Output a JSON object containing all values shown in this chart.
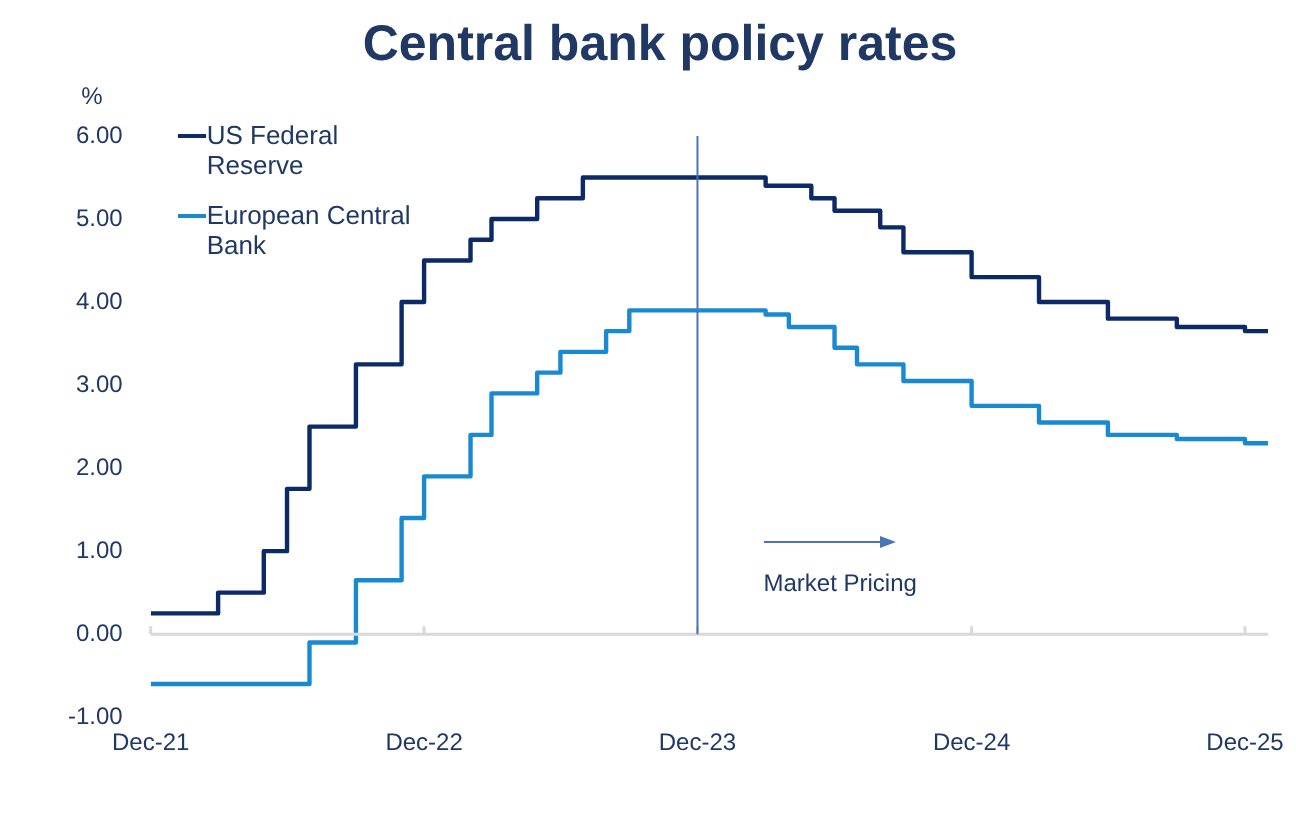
{
  "chart_data": {
    "type": "step",
    "title": "Central bank policy rates",
    "ylabel": "%",
    "xlim": [
      "2021-12",
      "2026-01"
    ],
    "xticks": [
      {
        "value": "2021-12",
        "label": "Dec-21"
      },
      {
        "value": "2022-12",
        "label": "Dec-22"
      },
      {
        "value": "2023-12",
        "label": "Dec-23"
      },
      {
        "value": "2024-12",
        "label": "Dec-24"
      },
      {
        "value": "2025-12",
        "label": "Dec-25"
      }
    ],
    "ylim": [
      -1,
      6
    ],
    "yticks": [
      {
        "value": -1,
        "label": "-1.00"
      },
      {
        "value": 0,
        "label": "0.00"
      },
      {
        "value": 1,
        "label": "1.00"
      },
      {
        "value": 2,
        "label": "2.00"
      },
      {
        "value": 3,
        "label": "3.00"
      },
      {
        "value": 4,
        "label": "4.00"
      },
      {
        "value": 5,
        "label": "5.00"
      },
      {
        "value": 6,
        "label": "6.00"
      }
    ],
    "series": [
      {
        "name": "US Federal Reserve",
        "color": "#0b2a66",
        "x": [
          "2021-12",
          "2022-03",
          "2022-05",
          "2022-06",
          "2022-07",
          "2022-09",
          "2022-11",
          "2022-12",
          "2023-02",
          "2023-03",
          "2023-05",
          "2023-07",
          "2024-03",
          "2024-05",
          "2024-06",
          "2024-08",
          "2024-09",
          "2024-12",
          "2025-03",
          "2025-06",
          "2025-09",
          "2025-12",
          "2026-01"
        ],
        "values": [
          0.25,
          0.5,
          1.0,
          1.75,
          2.5,
          3.25,
          4.0,
          4.5,
          4.75,
          5.0,
          5.25,
          5.5,
          5.4,
          5.25,
          5.1,
          4.9,
          4.6,
          4.3,
          4.0,
          3.8,
          3.7,
          3.65,
          3.65
        ]
      },
      {
        "name": "European Central Bank",
        "color": "#1a8ad0",
        "x": [
          "2021-12",
          "2022-07",
          "2022-09",
          "2022-11",
          "2022-12",
          "2023-02",
          "2023-03",
          "2023-05",
          "2023-06",
          "2023-08",
          "2023-09",
          "2024-03",
          "2024-04",
          "2024-06",
          "2024-07",
          "2024-09",
          "2024-12",
          "2025-03",
          "2025-06",
          "2025-09",
          "2025-12",
          "2026-01"
        ],
        "values": [
          -0.6,
          -0.1,
          0.65,
          1.4,
          1.9,
          2.4,
          2.9,
          3.15,
          3.4,
          3.65,
          3.9,
          3.85,
          3.7,
          3.45,
          3.25,
          3.05,
          2.75,
          2.55,
          2.4,
          2.35,
          2.3,
          2.3
        ]
      }
    ],
    "ref_lines": [
      {
        "axis": "x",
        "value": "2023-12",
        "color": "#4a74b8"
      }
    ],
    "annotations": [
      "Market Pricing"
    ],
    "grid": false,
    "legend": "top left",
    "marker": "none",
    "line_style": "solid"
  }
}
